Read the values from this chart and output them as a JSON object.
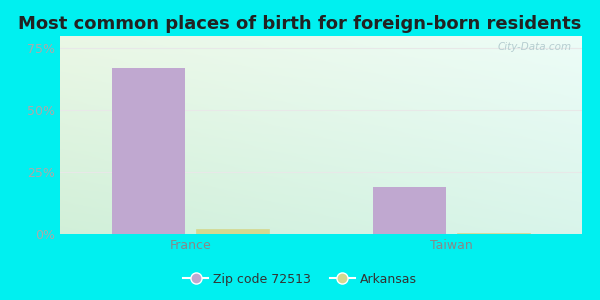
{
  "title": "Most common places of birth for foreign-born residents",
  "categories": [
    "France",
    "Taiwan"
  ],
  "zip_values": [
    0.67,
    0.19
  ],
  "state_values": [
    0.022,
    0.003
  ],
  "zip_color": "#c0a8d0",
  "state_color": "#d4d890",
  "bar_width": 0.28,
  "ylim": [
    0,
    0.8
  ],
  "yticks": [
    0,
    0.25,
    0.5,
    0.75
  ],
  "ytick_labels": [
    "0%",
    "25%",
    "50%",
    "75%"
  ],
  "legend_zip_label": "Zip code 72513",
  "legend_state_label": "Arkansas",
  "background_outer": "#00f0f0",
  "watermark": "City-Data.com",
  "title_fontsize": 13,
  "tick_fontsize": 9,
  "label_fontsize": 9,
  "grid_color": "#e8e8e8",
  "ytick_color": "#aaaaaa",
  "xtick_color": "#888888"
}
